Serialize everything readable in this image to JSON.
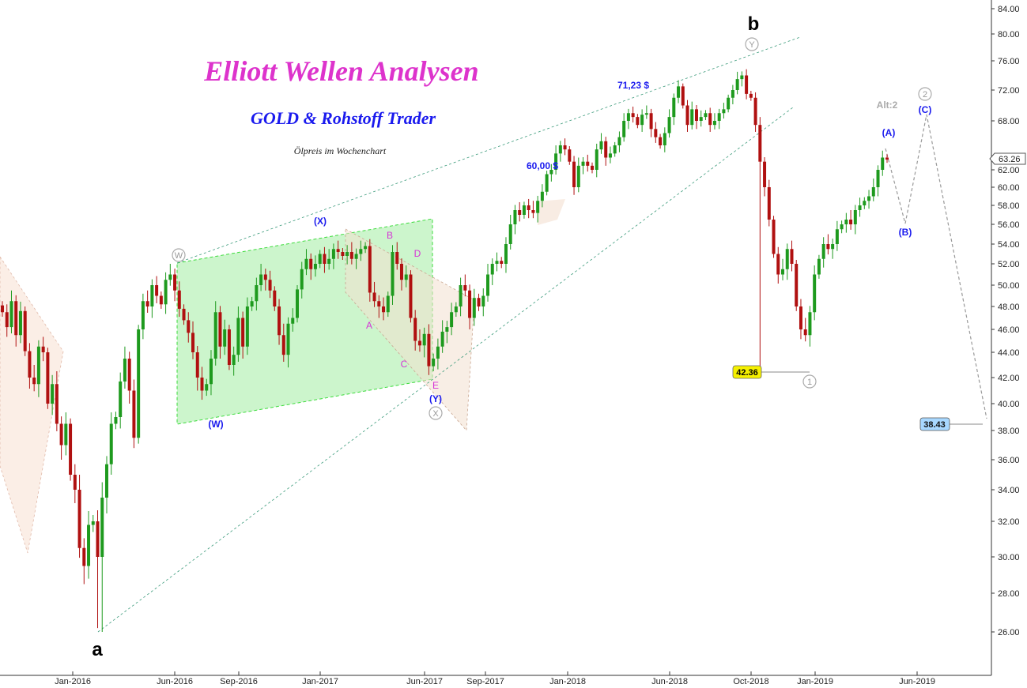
{
  "chart_data": {
    "type": "candlestick",
    "title": "Elliott Wellen Analysen",
    "subtitle": "GOLD & Rohstoff Trader",
    "caption": "Ölpreis im Wochenchart",
    "ylim": [
      24,
      85
    ],
    "y_ticks": [
      "26.00",
      "28.00",
      "30.00",
      "32.00",
      "34.00",
      "36.00",
      "38.00",
      "40.00",
      "42.00",
      "44.00",
      "46.00",
      "48.00",
      "50.00",
      "52.00",
      "54.00",
      "56.00",
      "58.00",
      "60.00",
      "62.00",
      "68.00",
      "72.00",
      "76.00",
      "80.00",
      "84.00"
    ],
    "x_ticks": [
      "Jan-2016",
      "Jun-2016",
      "Sep-2016",
      "Jan-2017",
      "Jun-2017",
      "Sep-2017",
      "Jan-2018",
      "Jun-2018",
      "Oct-2018",
      "Jan-2019",
      "Jun-2019"
    ],
    "last_price": "63.26",
    "closes": [
      47.5,
      46.2,
      48.5,
      45.5,
      47.6,
      44.1,
      42.0,
      41.5,
      44.5,
      44.0,
      40.0,
      41.5,
      38.5,
      37.0,
      38.5,
      35.0,
      34.0,
      30.5,
      29.5,
      31.8,
      32.0,
      30.0,
      33.5,
      35.7,
      38.5,
      39.0,
      41.7,
      43.5,
      41.0,
      37.5,
      46.0,
      48.5,
      48.0,
      50.0,
      49.0,
      48.2,
      50.5,
      51.0,
      49.5,
      47.8,
      46.8,
      45.7,
      44.0,
      42.0,
      41.0,
      41.5,
      43.5,
      47.5,
      44.5,
      46.0,
      43.0,
      43.8,
      47.0,
      44.5,
      48.0,
      48.5,
      50.0,
      51.0,
      50.5,
      49.5,
      48.0,
      45.5,
      43.8,
      46.5,
      47.0,
      49.6,
      51.5,
      52.5,
      51.5,
      52.0,
      53.0,
      52.0,
      52.5,
      53.5,
      53.2,
      52.8,
      53.2,
      52.5,
      53.0,
      53.5,
      53.8,
      49.3,
      48.5,
      48.0,
      47.5,
      49.0,
      53.2,
      52.0,
      50.5,
      51.0,
      47.0,
      45.0,
      44.6,
      45.6,
      42.9,
      43.5,
      44.5,
      45.8,
      46.2,
      47.5,
      48.0,
      50.0,
      49.5,
      47.0,
      48.8,
      48.0,
      49.0,
      51.0,
      52.0,
      52.3,
      52.0,
      54.0,
      56.0,
      57.5,
      57.0,
      58.0,
      57.5,
      57.2,
      58.5,
      59.5,
      61.5,
      62.0,
      64.0,
      65.0,
      64.5,
      63.0,
      60.0,
      62.5,
      63.0,
      62.5,
      62.0,
      64.5,
      65.5,
      63.5,
      64.0,
      65.0,
      66.0,
      68.0,
      69.0,
      68.5,
      67.5,
      68.8,
      69.0,
      67.0,
      66.0,
      65.0,
      66.5,
      68.5,
      71.0,
      72.5,
      70.0,
      67.5,
      69.5,
      68.0,
      68.5,
      69.0,
      67.5,
      68.0,
      69.0,
      69.5,
      71.0,
      72.0,
      73.5,
      74.0,
      71.5,
      71.0,
      67.5,
      63.0,
      60.0,
      56.5,
      53.0,
      51.0,
      51.5,
      53.5,
      52.0,
      48.0,
      46.0,
      45.5,
      47.5,
      51.0,
      52.5,
      54.0,
      53.5,
      54.0,
      55.5,
      56.0,
      56.5,
      56.0,
      57.5,
      58.0,
      58.5,
      59.0,
      60.0,
      62.0,
      63.5,
      63.26
    ]
  },
  "labels": {
    "wave_a": "a",
    "wave_b": "b",
    "W": "(W)",
    "X": "(X)",
    "Y": "(Y)",
    "A": "A",
    "B": "B",
    "C": "C",
    "D": "D",
    "E": "E",
    "circ_W": "W",
    "circ_X": "X",
    "circ_Y": "Y",
    "circ_1": "1",
    "circ_2": "2",
    "alt2": "Alt:2",
    "wA": "(A)",
    "wB": "(B)",
    "wC": "(C)",
    "price_60": "60,00 $",
    "price_71": "71,23 $",
    "low_box": "42.36",
    "target_box": "38.43"
  },
  "colors": {
    "bull": "#1e9a1e",
    "bear": "#b01010",
    "title": "#dd33cc",
    "subtitle": "#1a1aee",
    "wave_blue": "#1a1aee",
    "wave_magenta": "#d633d6",
    "channel_green": "#ccf5cc"
  }
}
